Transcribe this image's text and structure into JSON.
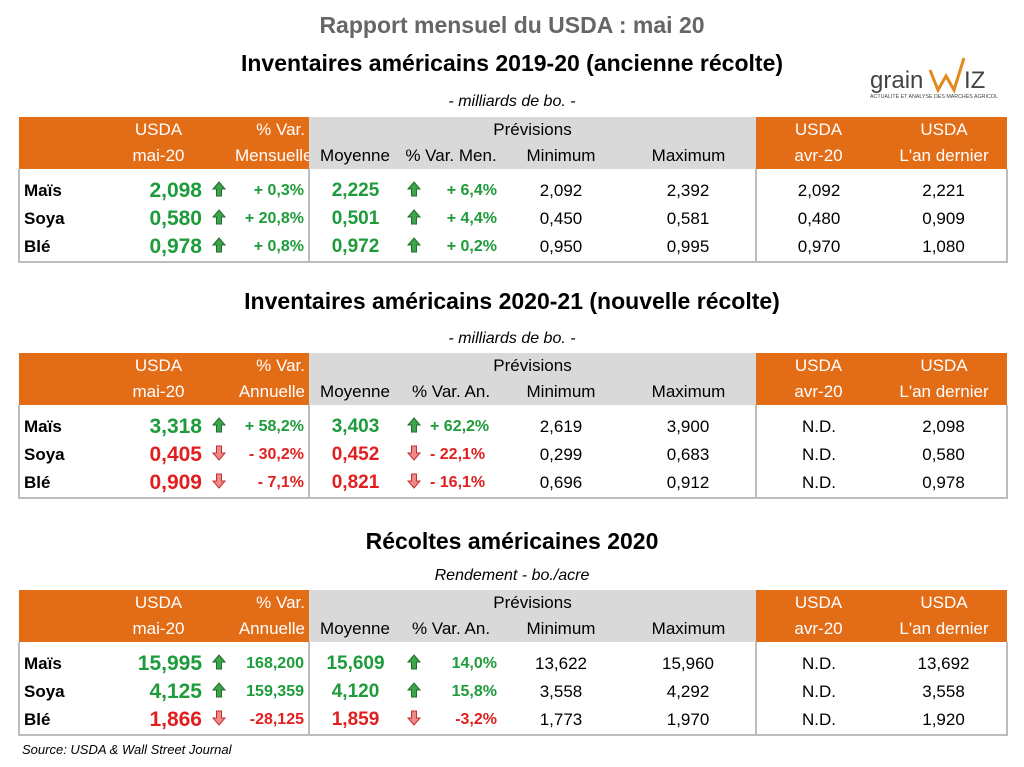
{
  "title": "Rapport mensuel du USDA : mai 20",
  "logo": {
    "text": "grainwiz",
    "tagline": "ACTUALITÉ ET ANALYSE DES MARCHÉS AGRICOLES"
  },
  "colors": {
    "orange": "#E36C17",
    "gray": "#D9D9D9",
    "green": "#1E9B3A",
    "red": "#E02020"
  },
  "sections": [
    {
      "title": "Inventaires américains 2019-20 (ancienne récolte)",
      "subtitle": "- milliards de bo.  -",
      "header": {
        "usda1": "USDA",
        "usda2": "mai-20",
        "var1": "% Var.",
        "var2": "Mensuelle",
        "prev": "Prévisions",
        "moy": "Moyenne",
        "varp": "% Var. Men.",
        "min": "Minimum",
        "max": "Maximum",
        "avr1": "USDA",
        "avr2": "avr-20",
        "last1": "USDA",
        "last2": "L'an dernier"
      },
      "rows": [
        {
          "label": "Maïs",
          "usda": "2,098",
          "dir": "up",
          "var": "+ 0,3%",
          "moy": "2,225",
          "pdir": "up",
          "pvar": "+ 6,4%",
          "min": "2,092",
          "max": "2,392",
          "avr": "2,092",
          "last": "2,221"
        },
        {
          "label": "Soya",
          "usda": "0,580",
          "dir": "up",
          "var": "+ 20,8%",
          "moy": "0,501",
          "pdir": "up",
          "pvar": "+ 4,4%",
          "min": "0,450",
          "max": "0,581",
          "avr": "0,480",
          "last": "0,909"
        },
        {
          "label": "Blé",
          "usda": "0,978",
          "dir": "up",
          "var": "+ 0,8%",
          "moy": "0,972",
          "pdir": "up",
          "pvar": "+ 0,2%",
          "min": "0,950",
          "max": "0,995",
          "avr": "0,970",
          "last": "1,080"
        }
      ]
    },
    {
      "title": "Inventaires américains 2020-21 (nouvelle récolte)",
      "subtitle": "- milliards de bo.  -",
      "header": {
        "usda1": "USDA",
        "usda2": "mai-20",
        "var1": "% Var.",
        "var2": "Annuelle",
        "prev": "Prévisions",
        "moy": "Moyenne",
        "varp": "% Var. An.",
        "min": "Minimum",
        "max": "Maximum",
        "avr1": "USDA",
        "avr2": "avr-20",
        "last1": "USDA",
        "last2": "L'an dernier"
      },
      "rows": [
        {
          "label": "Maïs",
          "usda": "3,318",
          "dir": "up",
          "var": "+ 58,2%",
          "moy": "3,403",
          "pdir": "up",
          "pvar": "+ 62,2%",
          "min": "2,619",
          "max": "3,900",
          "avr": "N.D.",
          "last": "2,098"
        },
        {
          "label": "Soya",
          "usda": "0,405",
          "dir": "dn",
          "var": "- 30,2%",
          "moy": "0,452",
          "pdir": "dn",
          "pvar": "- 22,1%",
          "min": "0,299",
          "max": "0,683",
          "avr": "N.D.",
          "last": "0,580"
        },
        {
          "label": "Blé",
          "usda": "0,909",
          "dir": "dn",
          "var": "- 7,1%",
          "moy": "0,821",
          "pdir": "dn",
          "pvar": "- 16,1%",
          "min": "0,696",
          "max": "0,912",
          "avr": "N.D.",
          "last": "0,978"
        }
      ]
    },
    {
      "title": "Récoltes américaines 2020",
      "subtitle": "Rendement - bo./acre",
      "header": {
        "usda1": "USDA",
        "usda2": "mai-20",
        "var1": "% Var.",
        "var2": "Annuelle",
        "prev": "Prévisions",
        "moy": "Moyenne",
        "varp": "% Var. An.",
        "min": "Minimum",
        "max": "Maximum",
        "avr1": "USDA",
        "avr2": "avr-20",
        "last1": "USDA",
        "last2": "L'an dernier"
      },
      "rows": [
        {
          "label": "Maïs",
          "usda": "15,995",
          "dir": "up",
          "var": "168,200",
          "moy": "15,609",
          "pdir": "up",
          "pvar": "14,0%",
          "min": "13,622",
          "max": "15,960",
          "avr": "N.D.",
          "last": "13,692"
        },
        {
          "label": "Soya",
          "usda": "4,125",
          "dir": "up",
          "var": "159,359",
          "moy": "4,120",
          "pdir": "up",
          "pvar": "15,8%",
          "min": "3,558",
          "max": "4,292",
          "avr": "N.D.",
          "last": "3,558"
        },
        {
          "label": "Blé",
          "usda": "1,866",
          "dir": "dn",
          "var": "-28,125",
          "moy": "1,859",
          "pdir": "dn",
          "pvar": "-3,2%",
          "min": "1,773",
          "max": "1,970",
          "avr": "N.D.",
          "last": "1,920"
        }
      ]
    }
  ],
  "source": "Source: USDA & Wall Street Journal"
}
